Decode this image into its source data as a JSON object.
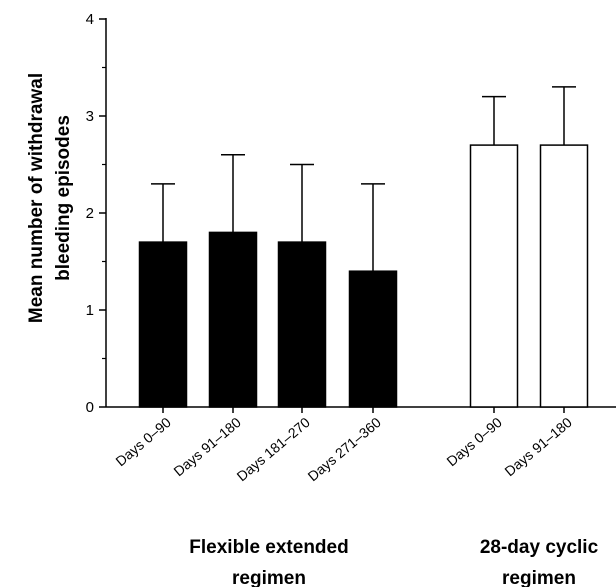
{
  "chart_data": {
    "type": "bar",
    "ylabel_lines": [
      "Mean number of withdrawal",
      "bleeding episodes"
    ],
    "ylim": [
      0,
      4
    ],
    "yticks": [
      0,
      1,
      2,
      3,
      4
    ],
    "yticklabels": [
      "0",
      "1",
      "2",
      "3",
      "4"
    ],
    "grid": false,
    "categories": [
      "Days 0–90",
      "Days 91–180",
      "Days 181–270",
      "Days 271–360",
      "Days 0–90",
      "Days 91–180"
    ],
    "values": [
      1.7,
      1.8,
      1.7,
      1.4,
      2.7,
      2.7
    ],
    "error_upper": [
      2.3,
      2.6,
      2.5,
      2.3,
      3.2,
      3.3
    ],
    "groups": [
      {
        "label_lines": [
          "Flexible extended",
          "regimen"
        ],
        "indices": [
          0,
          1,
          2,
          3
        ],
        "fill": "#000000"
      },
      {
        "label_lines": [
          "28-day cyclic",
          "regimen"
        ],
        "indices": [
          4,
          5
        ],
        "fill": "#ffffff"
      }
    ]
  }
}
